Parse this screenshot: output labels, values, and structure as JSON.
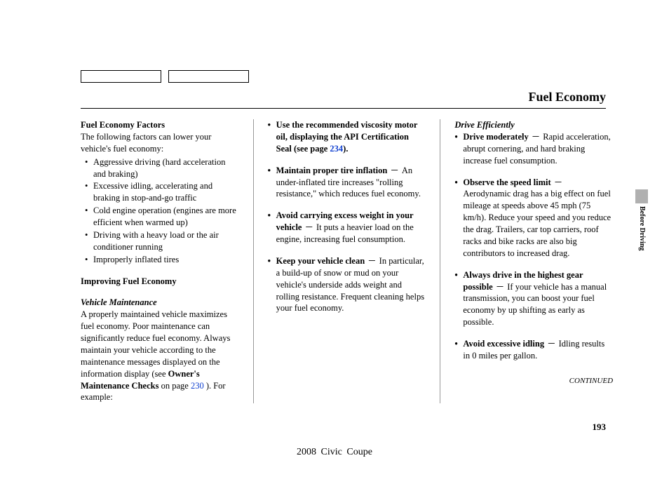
{
  "page": {
    "title": "Fuel Economy",
    "number": "193",
    "footer": "2008  Civic  Coupe",
    "continued": "CONTINUED",
    "side_tab": "Before Driving"
  },
  "col1": {
    "h1": "Fuel Economy Factors",
    "intro": "The following factors can lower your vehicle's fuel economy:",
    "factors": [
      "Aggressive driving (hard acceleration and braking)",
      "Excessive idling, accelerating and braking in stop-and-go traffic",
      "Cold engine operation (engines are more efficient when warmed up)",
      "Driving with a heavy load or the air conditioner running",
      "Improperly inflated tires"
    ],
    "h2": "Improving Fuel Economy",
    "h3": "Vehicle Maintenance",
    "maint_p1": "A properly maintained vehicle maximizes fuel economy. Poor maintenance can significantly reduce fuel economy. Always maintain your vehicle according to the maintenance messages displayed on the information display (see ",
    "maint_bold": "Owner's Maintenance Checks",
    "maint_p2": " on page ",
    "maint_page": "230",
    "maint_p3": " ). For example:"
  },
  "col2": {
    "tips": [
      {
        "lead_b": "Use the recommended viscosity motor oil, displaying the API Certification Seal (see page ",
        "page": "234",
        "lead_b2": ")."
      },
      {
        "lead_b": "Maintain proper tire inflation",
        "dash": "－",
        "rest": "An under-inflated tire increases \"rolling resistance,\" which reduces fuel economy."
      },
      {
        "lead_b": "Avoid carrying excess weight in your vehicle",
        "dash": "－",
        "rest": "It puts a heavier load on the engine, increasing fuel consumption."
      },
      {
        "lead_b": "Keep your vehicle clean",
        "dash": "－",
        "rest": "In particular, a build-up of snow or mud on your vehicle's underside adds weight and rolling resistance. Frequent cleaning helps your fuel economy."
      }
    ]
  },
  "col3": {
    "h": "Drive Efficiently",
    "tips": [
      {
        "lead_b": "Drive moderately",
        "dash": "－",
        "rest": "Rapid acceleration, abrupt cornering, and hard braking increase fuel consumption."
      },
      {
        "lead_b": "Observe the speed limit",
        "dash": "－",
        "rest": "Aerodynamic drag has a big effect on fuel mileage at speeds above 45 mph (75 km/h). Reduce your speed and you reduce the drag. Trailers, car top carriers, roof racks and bike racks are also big contributors to increased drag."
      },
      {
        "lead_b": "Always drive in the highest gear possible",
        "dash": "－",
        "rest": "If your vehicle has a manual transmission, you can boost your fuel economy by up shifting as early as possible."
      },
      {
        "lead_b": "Avoid excessive idling",
        "dash": "－",
        "rest": "Idling results in 0 miles per gallon."
      }
    ]
  }
}
